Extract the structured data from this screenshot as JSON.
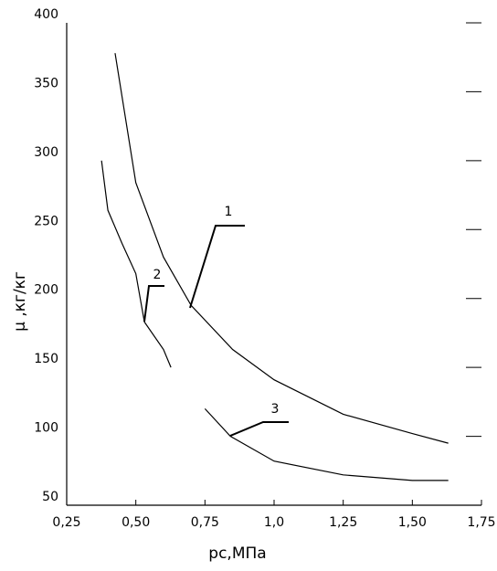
{
  "chart_data": {
    "type": "line",
    "x_label": "pc,МПа",
    "y_label": "μ ,кг/кг",
    "series": [
      {
        "name": "1",
        "color": "#000000",
        "x": [
          0.425,
          0.5,
          0.6,
          0.7,
          0.85,
          1.0,
          1.25,
          1.5,
          1.63
        ],
        "values": [
          378,
          284,
          230,
          195,
          163,
          141,
          116,
          102,
          95
        ]
      },
      {
        "name": "2",
        "color": "#000000",
        "x": [
          0.376,
          0.399,
          0.45,
          0.5,
          0.531,
          0.6,
          0.627,
          0.66,
          0.75,
          0.842,
          1.0,
          1.25,
          1.5,
          1.63
        ],
        "values": [
          300,
          264,
          240,
          218,
          183,
          163,
          150,
          null,
          120,
          100,
          82,
          72,
          68,
          68
        ]
      }
    ],
    "annotations": [
      "1",
      "2",
      "3"
    ],
    "xlim": [
      0.25,
      1.75
    ],
    "xticks": [
      {
        "value": 0.25,
        "label": "0,25"
      },
      {
        "value": 0.5,
        "label": "0,50"
      },
      {
        "value": 0.75,
        "label": "0,75"
      },
      {
        "value": 1.0,
        "label": "1,0"
      },
      {
        "value": 1.25,
        "label": "1,25"
      },
      {
        "value": 1.5,
        "label": "1,50"
      },
      {
        "value": 1.75,
        "label": "1,75"
      }
    ],
    "ylim": [
      50,
      400
    ],
    "yticks": [
      50,
      100,
      150,
      200,
      250,
      300,
      350,
      400
    ]
  }
}
